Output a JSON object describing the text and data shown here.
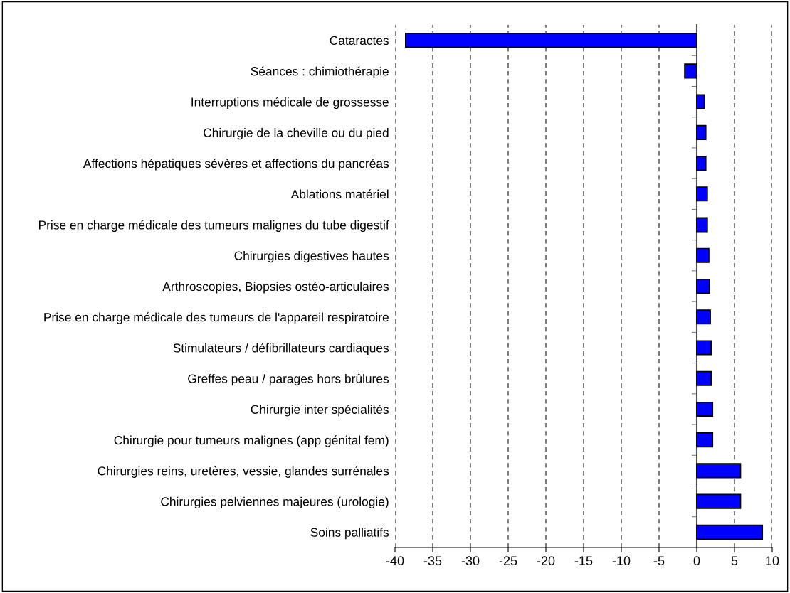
{
  "chart_data": {
    "type": "bar",
    "orientation": "horizontal",
    "categories": [
      "Cataractes",
      "Séances : chimiothérapie",
      "Interruptions médicale de grossesse",
      "Chirurgie de la cheville ou du pied",
      "Affections hépatiques sévères et affections du pancréas",
      "Ablations matériel",
      "Prise en charge médicale des tumeurs malignes du tube digestif",
      "Chirurgies digestives hautes",
      "Arthroscopies, Biopsies ostéo-articulaires",
      "Prise en charge médicale des tumeurs de l'appareil respiratoire",
      "Stimulateurs / défibrillateurs cardiaques",
      "Greffes peau / parages hors brûlures",
      "Chirurgie inter spécialités",
      "Chirurgie pour tumeurs malignes (app génital fem)",
      "Chirurgies reins, uretères, vessie, glandes surrénales",
      "Chirurgies pelviennes majeures (urologie)",
      "Soins palliatifs"
    ],
    "values": [
      -38.6,
      -1.6,
      1.0,
      1.2,
      1.2,
      1.4,
      1.4,
      1.6,
      1.7,
      1.8,
      1.9,
      1.9,
      2.1,
      2.1,
      5.8,
      5.8,
      8.7
    ],
    "color": "#0000ff",
    "xlim": [
      -40,
      10
    ],
    "xticks": [
      -40,
      -35,
      -30,
      -25,
      -20,
      -15,
      -10,
      -5,
      0,
      5,
      10
    ],
    "grid": "x",
    "line_style": "dashed"
  }
}
